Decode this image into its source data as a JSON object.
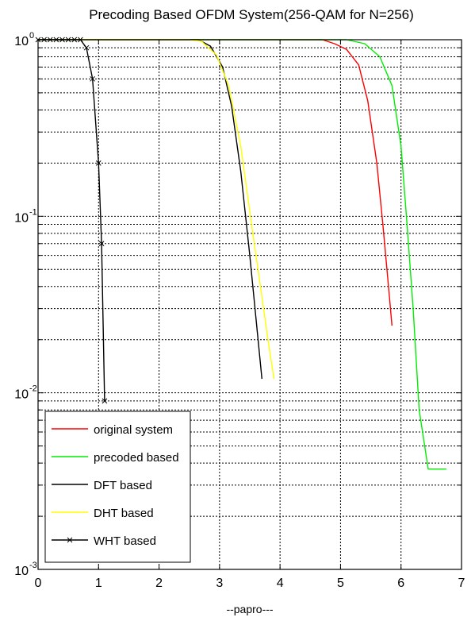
{
  "chart_data": {
    "type": "line",
    "title": "Precoding Based OFDM System(256-QAM for N=256)",
    "xlabel": "--papro---",
    "ylabel": "",
    "xlim": [
      0,
      7
    ],
    "ylim": [
      0.001,
      1
    ],
    "yscale": "log",
    "grid": true,
    "legend_position": "bottom-left",
    "x_ticks": [
      0,
      1,
      2,
      3,
      4,
      5,
      6,
      7
    ],
    "x_tick_labels": [
      "0",
      "1",
      "2",
      "3",
      "4",
      "5",
      "6",
      "7"
    ],
    "y_ticks": [
      0.001,
      0.01,
      0.1,
      1
    ],
    "y_tick_labels": [
      {
        "base": "10",
        "exp": "-3"
      },
      {
        "base": "10",
        "exp": "-2"
      },
      {
        "base": "10",
        "exp": "-1"
      },
      {
        "base": "10",
        "exp": "0"
      }
    ],
    "series": [
      {
        "name": "original system",
        "color": "#ff0000",
        "marker": "none",
        "x": [
          0,
          4.7,
          4.9,
          5.1,
          5.3,
          5.45,
          5.6,
          5.7,
          5.78,
          5.85
        ],
        "y": [
          1,
          1,
          0.95,
          0.88,
          0.72,
          0.45,
          0.2,
          0.09,
          0.045,
          0.024
        ]
      },
      {
        "name": "precoded based",
        "color": "#00ee00",
        "marker": "none",
        "x": [
          0,
          5.1,
          5.4,
          5.65,
          5.85,
          6.0,
          6.1,
          6.2,
          6.3,
          6.45,
          6.75
        ],
        "y": [
          1,
          1,
          0.95,
          0.8,
          0.55,
          0.25,
          0.09,
          0.03,
          0.008,
          0.0037,
          0.0037
        ]
      },
      {
        "name": "DFT based",
        "color": "#000000",
        "marker": "none",
        "x": [
          0,
          2.65,
          2.85,
          3.05,
          3.2,
          3.35,
          3.5,
          3.6,
          3.7
        ],
        "y": [
          1,
          1,
          0.92,
          0.7,
          0.42,
          0.18,
          0.06,
          0.027,
          0.012
        ]
      },
      {
        "name": "DHT based",
        "color": "#ffff00",
        "marker": "none",
        "x": [
          0,
          2.5,
          2.7,
          2.95,
          3.15,
          3.35,
          3.55,
          3.7,
          3.8,
          3.9
        ],
        "y": [
          1,
          1,
          0.98,
          0.82,
          0.55,
          0.25,
          0.08,
          0.035,
          0.02,
          0.012
        ]
      },
      {
        "name": "WHT based",
        "color": "#000000",
        "marker": "x",
        "x": [
          0,
          0.1,
          0.2,
          0.3,
          0.4,
          0.5,
          0.6,
          0.7,
          0.8,
          0.9,
          1.0,
          1.05,
          1.1
        ],
        "y": [
          1,
          1,
          1,
          1,
          1,
          1,
          1,
          1,
          0.9,
          0.6,
          0.2,
          0.07,
          0.009
        ]
      }
    ]
  }
}
